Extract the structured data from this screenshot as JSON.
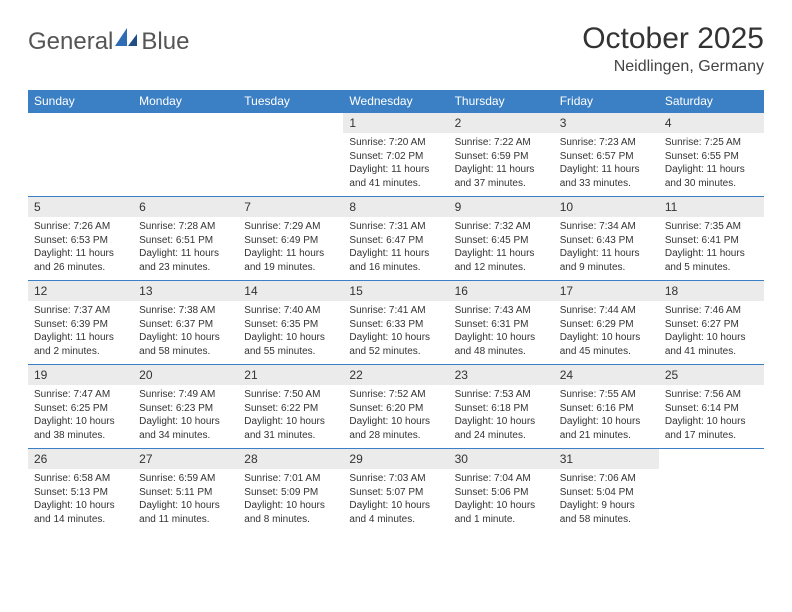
{
  "brand": {
    "text_gray": "General",
    "text_blue": "Blue"
  },
  "header": {
    "title": "October 2025",
    "location": "Neidlingen, Germany"
  },
  "colors": {
    "header_bg": "#3b7fc4",
    "header_text": "#ffffff",
    "daynum_bg": "#ebebeb",
    "border": "#3b7fc4",
    "body_text": "#333333",
    "logo_gray": "#555555",
    "logo_blue": "#3b7fc4",
    "page_bg": "#ffffff"
  },
  "typography": {
    "title_fontsize": 30,
    "location_fontsize": 16,
    "weekday_fontsize": 12,
    "daynum_fontsize": 12,
    "cell_fontsize": 10
  },
  "calendar": {
    "type": "table",
    "weekdays": [
      "Sunday",
      "Monday",
      "Tuesday",
      "Wednesday",
      "Thursday",
      "Friday",
      "Saturday"
    ],
    "weeks": [
      [
        null,
        null,
        null,
        {
          "day": "1",
          "sunrise": "Sunrise: 7:20 AM",
          "sunset": "Sunset: 7:02 PM",
          "daylight": "Daylight: 11 hours and 41 minutes."
        },
        {
          "day": "2",
          "sunrise": "Sunrise: 7:22 AM",
          "sunset": "Sunset: 6:59 PM",
          "daylight": "Daylight: 11 hours and 37 minutes."
        },
        {
          "day": "3",
          "sunrise": "Sunrise: 7:23 AM",
          "sunset": "Sunset: 6:57 PM",
          "daylight": "Daylight: 11 hours and 33 minutes."
        },
        {
          "day": "4",
          "sunrise": "Sunrise: 7:25 AM",
          "sunset": "Sunset: 6:55 PM",
          "daylight": "Daylight: 11 hours and 30 minutes."
        }
      ],
      [
        {
          "day": "5",
          "sunrise": "Sunrise: 7:26 AM",
          "sunset": "Sunset: 6:53 PM",
          "daylight": "Daylight: 11 hours and 26 minutes."
        },
        {
          "day": "6",
          "sunrise": "Sunrise: 7:28 AM",
          "sunset": "Sunset: 6:51 PM",
          "daylight": "Daylight: 11 hours and 23 minutes."
        },
        {
          "day": "7",
          "sunrise": "Sunrise: 7:29 AM",
          "sunset": "Sunset: 6:49 PM",
          "daylight": "Daylight: 11 hours and 19 minutes."
        },
        {
          "day": "8",
          "sunrise": "Sunrise: 7:31 AM",
          "sunset": "Sunset: 6:47 PM",
          "daylight": "Daylight: 11 hours and 16 minutes."
        },
        {
          "day": "9",
          "sunrise": "Sunrise: 7:32 AM",
          "sunset": "Sunset: 6:45 PM",
          "daylight": "Daylight: 11 hours and 12 minutes."
        },
        {
          "day": "10",
          "sunrise": "Sunrise: 7:34 AM",
          "sunset": "Sunset: 6:43 PM",
          "daylight": "Daylight: 11 hours and 9 minutes."
        },
        {
          "day": "11",
          "sunrise": "Sunrise: 7:35 AM",
          "sunset": "Sunset: 6:41 PM",
          "daylight": "Daylight: 11 hours and 5 minutes."
        }
      ],
      [
        {
          "day": "12",
          "sunrise": "Sunrise: 7:37 AM",
          "sunset": "Sunset: 6:39 PM",
          "daylight": "Daylight: 11 hours and 2 minutes."
        },
        {
          "day": "13",
          "sunrise": "Sunrise: 7:38 AM",
          "sunset": "Sunset: 6:37 PM",
          "daylight": "Daylight: 10 hours and 58 minutes."
        },
        {
          "day": "14",
          "sunrise": "Sunrise: 7:40 AM",
          "sunset": "Sunset: 6:35 PM",
          "daylight": "Daylight: 10 hours and 55 minutes."
        },
        {
          "day": "15",
          "sunrise": "Sunrise: 7:41 AM",
          "sunset": "Sunset: 6:33 PM",
          "daylight": "Daylight: 10 hours and 52 minutes."
        },
        {
          "day": "16",
          "sunrise": "Sunrise: 7:43 AM",
          "sunset": "Sunset: 6:31 PM",
          "daylight": "Daylight: 10 hours and 48 minutes."
        },
        {
          "day": "17",
          "sunrise": "Sunrise: 7:44 AM",
          "sunset": "Sunset: 6:29 PM",
          "daylight": "Daylight: 10 hours and 45 minutes."
        },
        {
          "day": "18",
          "sunrise": "Sunrise: 7:46 AM",
          "sunset": "Sunset: 6:27 PM",
          "daylight": "Daylight: 10 hours and 41 minutes."
        }
      ],
      [
        {
          "day": "19",
          "sunrise": "Sunrise: 7:47 AM",
          "sunset": "Sunset: 6:25 PM",
          "daylight": "Daylight: 10 hours and 38 minutes."
        },
        {
          "day": "20",
          "sunrise": "Sunrise: 7:49 AM",
          "sunset": "Sunset: 6:23 PM",
          "daylight": "Daylight: 10 hours and 34 minutes."
        },
        {
          "day": "21",
          "sunrise": "Sunrise: 7:50 AM",
          "sunset": "Sunset: 6:22 PM",
          "daylight": "Daylight: 10 hours and 31 minutes."
        },
        {
          "day": "22",
          "sunrise": "Sunrise: 7:52 AM",
          "sunset": "Sunset: 6:20 PM",
          "daylight": "Daylight: 10 hours and 28 minutes."
        },
        {
          "day": "23",
          "sunrise": "Sunrise: 7:53 AM",
          "sunset": "Sunset: 6:18 PM",
          "daylight": "Daylight: 10 hours and 24 minutes."
        },
        {
          "day": "24",
          "sunrise": "Sunrise: 7:55 AM",
          "sunset": "Sunset: 6:16 PM",
          "daylight": "Daylight: 10 hours and 21 minutes."
        },
        {
          "day": "25",
          "sunrise": "Sunrise: 7:56 AM",
          "sunset": "Sunset: 6:14 PM",
          "daylight": "Daylight: 10 hours and 17 minutes."
        }
      ],
      [
        {
          "day": "26",
          "sunrise": "Sunrise: 6:58 AM",
          "sunset": "Sunset: 5:13 PM",
          "daylight": "Daylight: 10 hours and 14 minutes."
        },
        {
          "day": "27",
          "sunrise": "Sunrise: 6:59 AM",
          "sunset": "Sunset: 5:11 PM",
          "daylight": "Daylight: 10 hours and 11 minutes."
        },
        {
          "day": "28",
          "sunrise": "Sunrise: 7:01 AM",
          "sunset": "Sunset: 5:09 PM",
          "daylight": "Daylight: 10 hours and 8 minutes."
        },
        {
          "day": "29",
          "sunrise": "Sunrise: 7:03 AM",
          "sunset": "Sunset: 5:07 PM",
          "daylight": "Daylight: 10 hours and 4 minutes."
        },
        {
          "day": "30",
          "sunrise": "Sunrise: 7:04 AM",
          "sunset": "Sunset: 5:06 PM",
          "daylight": "Daylight: 10 hours and 1 minute."
        },
        {
          "day": "31",
          "sunrise": "Sunrise: 7:06 AM",
          "sunset": "Sunset: 5:04 PM",
          "daylight": "Daylight: 9 hours and 58 minutes."
        },
        null
      ]
    ]
  }
}
